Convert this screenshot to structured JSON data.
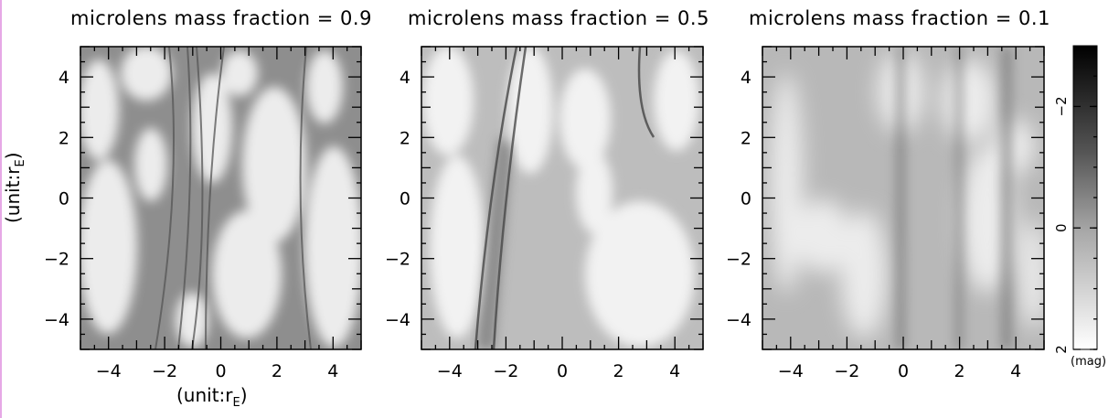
{
  "panels": [
    {
      "title": "microlens mass fraction = 0.9",
      "fraction": 0.9
    },
    {
      "title": "microlens mass fraction = 0.5",
      "fraction": 0.5
    },
    {
      "title": "microlens mass fraction = 0.1",
      "fraction": 0.1
    }
  ],
  "axes": {
    "x_ticks": [
      "−4",
      "−2",
      "0",
      "2",
      "4"
    ],
    "y_ticks": [
      "4",
      "2",
      "0",
      "−2",
      "−4"
    ],
    "range": [
      -5,
      5
    ],
    "ylabel_text": "(unit:r",
    "ylabel_sub": "E",
    "ylabel_close": ")",
    "xlabel_text": "(unit:r",
    "xlabel_sub": "E",
    "xlabel_close": ")"
  },
  "colorbar": {
    "ticks": [
      "−2",
      "0",
      "2"
    ],
    "unit": "(mag)",
    "scale": "grayscale, black at top (−2 mag) to white at bottom (2 mag)"
  }
}
